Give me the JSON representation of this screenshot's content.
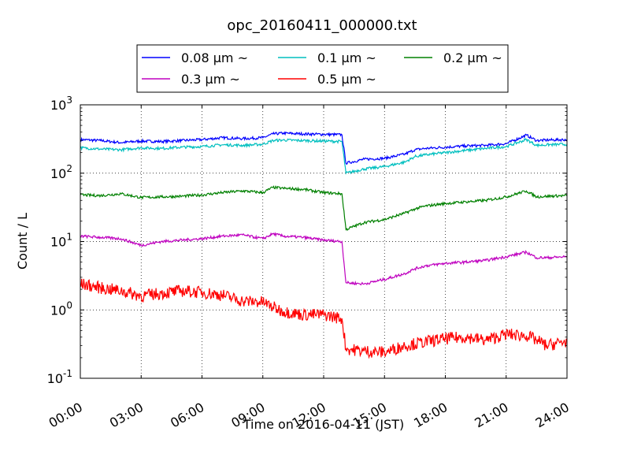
{
  "chart_data": {
    "type": "line",
    "title": "opc_20160411_000000.txt",
    "xlabel": "Time on 2016-04-11 (JST)",
    "ylabel": "Count / L",
    "x_unit": "hours",
    "xlim": [
      0,
      24
    ],
    "ylim": [
      0.1,
      1000
    ],
    "yscale": "log",
    "grid": true,
    "legend_position": "top-center",
    "x_ticks": [
      "00:00",
      "03:00",
      "06:00",
      "09:00",
      "12:00",
      "15:00",
      "18:00",
      "21:00",
      "24:00"
    ],
    "y_ticks": [
      {
        "base": "10",
        "exp": "-1"
      },
      {
        "base": "10",
        "exp": "0"
      },
      {
        "base": "10",
        "exp": "1"
      },
      {
        "base": "10",
        "exp": "2"
      },
      {
        "base": "10",
        "exp": "3"
      }
    ],
    "series": [
      {
        "name": "0.08 μm ~",
        "color": "#0000ff",
        "points": [
          [
            0,
            310
          ],
          [
            1,
            300
          ],
          [
            2,
            280
          ],
          [
            3,
            295
          ],
          [
            4,
            290
          ],
          [
            5,
            300
          ],
          [
            6,
            310
          ],
          [
            7,
            330
          ],
          [
            8,
            320
          ],
          [
            9,
            330
          ],
          [
            9.5,
            375
          ],
          [
            10,
            385
          ],
          [
            11,
            375
          ],
          [
            12,
            370
          ],
          [
            12.9,
            365
          ],
          [
            13.1,
            140
          ],
          [
            14,
            160
          ],
          [
            15,
            165
          ],
          [
            16,
            190
          ],
          [
            16.5,
            220
          ],
          [
            17,
            230
          ],
          [
            18,
            240
          ],
          [
            19,
            250
          ],
          [
            20,
            255
          ],
          [
            21,
            270
          ],
          [
            22,
            360
          ],
          [
            22.5,
            300
          ],
          [
            23,
            305
          ],
          [
            24,
            310
          ]
        ]
      },
      {
        "name": "0.1 μm ~",
        "color": "#00bfbf",
        "points": [
          [
            0,
            235
          ],
          [
            1,
            225
          ],
          [
            2,
            220
          ],
          [
            3,
            235
          ],
          [
            4,
            230
          ],
          [
            5,
            240
          ],
          [
            6,
            245
          ],
          [
            7,
            260
          ],
          [
            8,
            255
          ],
          [
            9,
            265
          ],
          [
            9.5,
            300
          ],
          [
            10,
            305
          ],
          [
            11,
            300
          ],
          [
            12,
            295
          ],
          [
            12.9,
            290
          ],
          [
            13.1,
            100
          ],
          [
            14,
            115
          ],
          [
            15,
            125
          ],
          [
            16,
            145
          ],
          [
            16.5,
            175
          ],
          [
            17,
            185
          ],
          [
            18,
            200
          ],
          [
            19,
            215
          ],
          [
            20,
            230
          ],
          [
            21,
            245
          ],
          [
            22,
            310
          ],
          [
            22.5,
            255
          ],
          [
            23,
            260
          ],
          [
            24,
            265
          ]
        ]
      },
      {
        "name": "0.2 μm ~",
        "color": "#008000",
        "points": [
          [
            0,
            48
          ],
          [
            1,
            47
          ],
          [
            2,
            50
          ],
          [
            3,
            44
          ],
          [
            4,
            45
          ],
          [
            5,
            46
          ],
          [
            6,
            48
          ],
          [
            7,
            52
          ],
          [
            8,
            55
          ],
          [
            9,
            52
          ],
          [
            9.5,
            62
          ],
          [
            10,
            60
          ],
          [
            11,
            58
          ],
          [
            12,
            52
          ],
          [
            12.9,
            50
          ],
          [
            13.1,
            15
          ],
          [
            14,
            19
          ],
          [
            15,
            21
          ],
          [
            16,
            26
          ],
          [
            16.5,
            30
          ],
          [
            17,
            33
          ],
          [
            18,
            36
          ],
          [
            19,
            38
          ],
          [
            20,
            40
          ],
          [
            21,
            45
          ],
          [
            22,
            55
          ],
          [
            22.5,
            45
          ],
          [
            23,
            46
          ],
          [
            24,
            47
          ]
        ]
      },
      {
        "name": "0.3 μm ~",
        "color": "#bf00bf",
        "points": [
          [
            0,
            12
          ],
          [
            1,
            11.5
          ],
          [
            2,
            11
          ],
          [
            3,
            8.8
          ],
          [
            4,
            10
          ],
          [
            5,
            10.5
          ],
          [
            6,
            11
          ],
          [
            7,
            12
          ],
          [
            8,
            12.5
          ],
          [
            9,
            11
          ],
          [
            9.5,
            13
          ],
          [
            10,
            12
          ],
          [
            11,
            11.5
          ],
          [
            12,
            10.5
          ],
          [
            12.9,
            10
          ],
          [
            13.1,
            2.5
          ],
          [
            14,
            2.4
          ],
          [
            15,
            2.8
          ],
          [
            16,
            3.4
          ],
          [
            16.5,
            4
          ],
          [
            17,
            4.4
          ],
          [
            18,
            4.8
          ],
          [
            19,
            5
          ],
          [
            20,
            5.3
          ],
          [
            21,
            6
          ],
          [
            22,
            7
          ],
          [
            22.5,
            5.8
          ],
          [
            23,
            5.8
          ],
          [
            24,
            6
          ]
        ]
      },
      {
        "name": "0.5 μm ~",
        "color": "#ff0000",
        "points": [
          [
            0,
            2.4
          ],
          [
            1,
            2.1
          ],
          [
            2,
            1.9
          ],
          [
            3,
            1.6
          ],
          [
            4,
            1.75
          ],
          [
            5,
            1.9
          ],
          [
            6,
            1.8
          ],
          [
            7,
            1.65
          ],
          [
            8,
            1.35
          ],
          [
            9,
            1.3
          ],
          [
            9.5,
            1.1
          ],
          [
            10,
            0.95
          ],
          [
            11,
            0.85
          ],
          [
            12,
            0.85
          ],
          [
            12.9,
            0.75
          ],
          [
            13.1,
            0.27
          ],
          [
            14,
            0.25
          ],
          [
            15,
            0.24
          ],
          [
            16,
            0.3
          ],
          [
            17,
            0.34
          ],
          [
            18,
            0.38
          ],
          [
            19,
            0.4
          ],
          [
            20,
            0.36
          ],
          [
            21,
            0.44
          ],
          [
            22,
            0.42
          ],
          [
            22.5,
            0.36
          ],
          [
            23,
            0.3
          ],
          [
            24,
            0.35
          ]
        ]
      }
    ]
  }
}
